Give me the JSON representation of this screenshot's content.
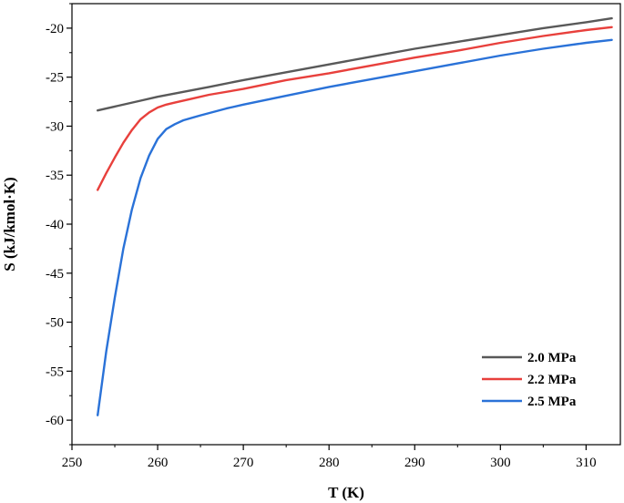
{
  "chart_data": {
    "type": "line",
    "title": "",
    "xlabel": "T (K)",
    "ylabel": "S (kJ/kmol·K)",
    "xlim": [
      250,
      314
    ],
    "ylim": [
      -62.5,
      -17.5
    ],
    "xticks": [
      250,
      260,
      270,
      280,
      290,
      300,
      310
    ],
    "xtick_labels": [
      "250",
      "260",
      "270",
      "280",
      "290",
      "300",
      "310"
    ],
    "yticks": [
      -20,
      -25,
      -30,
      -35,
      -40,
      -45,
      -50,
      -55,
      -60
    ],
    "ytick_labels": [
      "-20",
      "-25",
      "-30",
      "-35",
      "-40",
      "-45",
      "-50",
      "-55",
      "-60"
    ],
    "grid": false,
    "legend": {
      "position": "bottom-right"
    },
    "series": [
      {
        "name": "2.0 MPa",
        "color": "#595959",
        "x": [
          253,
          255,
          258,
          260,
          263,
          266,
          270,
          275,
          280,
          285,
          290,
          295,
          300,
          305,
          310,
          313
        ],
        "y": [
          -28.4,
          -28.0,
          -27.4,
          -27.0,
          -26.5,
          -26.0,
          -25.3,
          -24.5,
          -23.7,
          -22.9,
          -22.1,
          -21.4,
          -20.7,
          -20.0,
          -19.4,
          -19.0
        ]
      },
      {
        "name": "2.2 MPa",
        "color": "#e8403c",
        "x": [
          253,
          254,
          255,
          256,
          257,
          258,
          259,
          260,
          261,
          262,
          264,
          266,
          270,
          275,
          280,
          285,
          290,
          295,
          300,
          305,
          310,
          313
        ],
        "y": [
          -36.5,
          -34.8,
          -33.2,
          -31.7,
          -30.4,
          -29.3,
          -28.6,
          -28.1,
          -27.8,
          -27.6,
          -27.2,
          -26.8,
          -26.2,
          -25.3,
          -24.6,
          -23.8,
          -23.0,
          -22.3,
          -21.5,
          -20.8,
          -20.2,
          -19.9
        ]
      },
      {
        "name": "2.5 MPa",
        "color": "#2a72d8",
        "x": [
          253,
          254,
          255,
          256,
          257,
          258,
          259,
          260,
          261,
          262,
          263,
          265,
          268,
          270,
          275,
          280,
          285,
          290,
          295,
          300,
          305,
          310,
          313
        ],
        "y": [
          -59.5,
          -53.0,
          -47.5,
          -42.5,
          -38.5,
          -35.3,
          -33.0,
          -31.3,
          -30.3,
          -29.8,
          -29.4,
          -28.9,
          -28.2,
          -27.8,
          -26.9,
          -26.0,
          -25.2,
          -24.4,
          -23.6,
          -22.8,
          -22.1,
          -21.5,
          -21.2
        ]
      }
    ]
  }
}
